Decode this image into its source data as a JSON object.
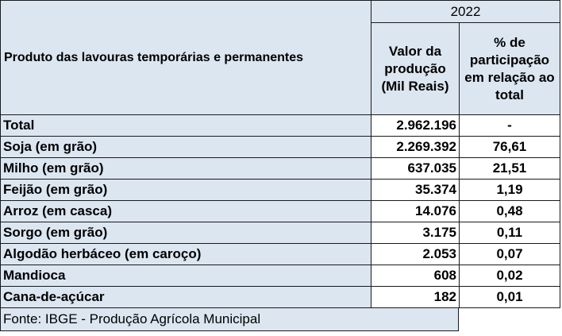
{
  "header": {
    "year": "2022",
    "product_col": "Produto das lavouras temporárias e permanentes",
    "value_col": "Valor da produção (Mil Reais)",
    "share_col": "% de participação em relação ao total"
  },
  "rows": [
    {
      "product": "Total",
      "value": "2.962.196",
      "share": "-"
    },
    {
      "product": "Soja (em grão)",
      "value": "2.269.392",
      "share": "76,61"
    },
    {
      "product": "Milho (em grão)",
      "value": "637.035",
      "share": "21,51"
    },
    {
      "product": "Feijão (em grão)",
      "value": "35.374",
      "share": "1,19"
    },
    {
      "product": "Arroz (em casca)",
      "value": "14.076",
      "share": "0,48"
    },
    {
      "product": "Sorgo (em grão)",
      "value": "3.175",
      "share": "0,11"
    },
    {
      "product": "Algodão herbáceo (em caroço)",
      "value": "2.053",
      "share": "0,07"
    },
    {
      "product": "Mandioca",
      "value": "608",
      "share": "0,02"
    },
    {
      "product": "Cana-de-açúcar",
      "value": "182",
      "share": "0,01"
    }
  ],
  "footer": {
    "source": "Fonte: IBGE - Produção Agrícola Municipal"
  },
  "colors": {
    "header_fill": "#dce6f1",
    "border": "#1a1a1a"
  }
}
